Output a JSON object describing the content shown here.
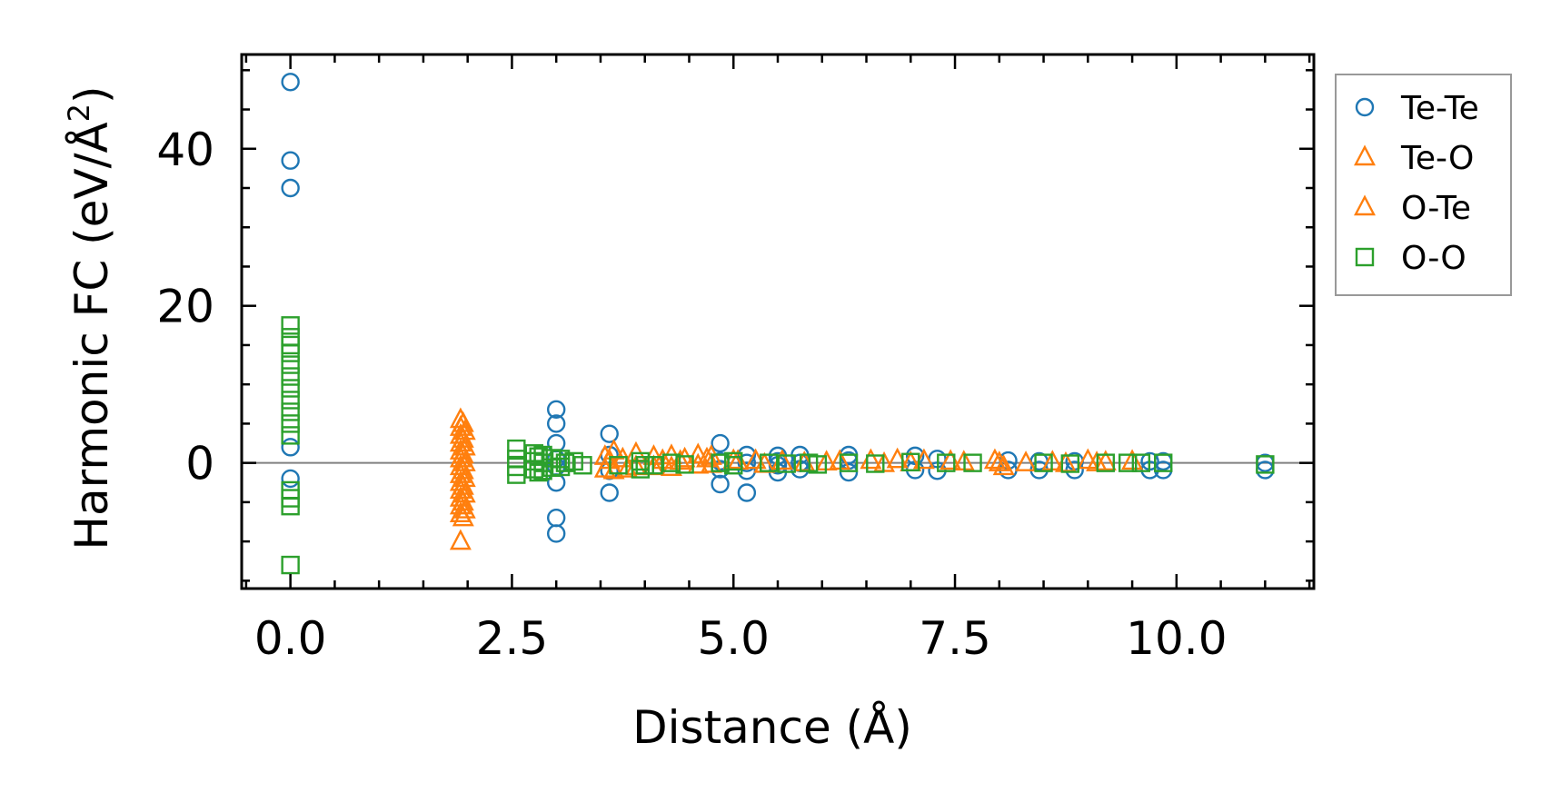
{
  "chart_data": {
    "type": "scatter",
    "title": "",
    "xlabel": "Distance (Å)",
    "ylabel": "Harmonic FC (eV/Å",
    "ylabel_sup": "2",
    "ylabel_close": ")",
    "xlim": [
      -0.55,
      11.55
    ],
    "ylim": [
      -16,
      52
    ],
    "x_ticks": [
      0.0,
      2.5,
      5.0,
      7.5,
      10.0
    ],
    "x_tick_labels": [
      "0.0",
      "2.5",
      "5.0",
      "7.5",
      "10.0"
    ],
    "y_ticks": [
      0,
      20,
      40
    ],
    "y_tick_labels": [
      "0",
      "20",
      "40"
    ],
    "zero_line": true,
    "grid": false,
    "legend_position": "outside-right-top",
    "series": [
      {
        "name": "Te-Te",
        "marker": "circle",
        "color": "#1f77b4",
        "points": [
          [
            0.0,
            48.5
          ],
          [
            0.0,
            38.5
          ],
          [
            0.0,
            35.0
          ],
          [
            0.0,
            2.0
          ],
          [
            0.0,
            -2.0
          ],
          [
            3.0,
            6.8
          ],
          [
            3.0,
            5.0
          ],
          [
            3.0,
            2.5
          ],
          [
            3.0,
            0.5
          ],
          [
            3.0,
            -0.5
          ],
          [
            3.0,
            -2.5
          ],
          [
            3.0,
            -7.0
          ],
          [
            3.0,
            -9.0
          ],
          [
            3.6,
            3.7
          ],
          [
            3.6,
            1.0
          ],
          [
            3.6,
            -1.0
          ],
          [
            3.6,
            -3.8
          ],
          [
            4.85,
            2.5
          ],
          [
            4.85,
            0.2
          ],
          [
            4.85,
            -0.8
          ],
          [
            4.85,
            -2.7
          ],
          [
            5.15,
            1.0
          ],
          [
            5.15,
            0.0
          ],
          [
            5.15,
            -1.0
          ],
          [
            5.15,
            -3.8
          ],
          [
            5.5,
            0.9
          ],
          [
            5.5,
            0.2
          ],
          [
            5.5,
            -0.3
          ],
          [
            5.5,
            -1.2
          ],
          [
            5.75,
            1.0
          ],
          [
            5.75,
            0.0
          ],
          [
            5.75,
            -0.8
          ],
          [
            6.3,
            1.0
          ],
          [
            6.3,
            0.3
          ],
          [
            6.3,
            -1.2
          ],
          [
            7.05,
            0.9
          ],
          [
            7.05,
            -0.9
          ],
          [
            7.3,
            0.5
          ],
          [
            7.3,
            -1.0
          ],
          [
            8.1,
            0.3
          ],
          [
            8.1,
            -0.9
          ],
          [
            8.45,
            0.2
          ],
          [
            8.45,
            -0.9
          ],
          [
            8.85,
            0.2
          ],
          [
            8.85,
            -0.9
          ],
          [
            9.7,
            0.2
          ],
          [
            9.7,
            -0.9
          ],
          [
            9.85,
            0.2
          ],
          [
            9.85,
            -0.9
          ],
          [
            11.0,
            0.0
          ],
          [
            11.0,
            -0.9
          ]
        ]
      },
      {
        "name": "Te-O",
        "marker": "triangle",
        "color": "#ff7f0e",
        "points": [
          [
            1.92,
            5.5
          ],
          [
            1.92,
            4.5
          ],
          [
            1.92,
            3.5
          ],
          [
            1.92,
            2.5
          ],
          [
            1.92,
            1.5
          ],
          [
            1.92,
            0.5
          ],
          [
            1.92,
            -0.5
          ],
          [
            1.92,
            -1.5
          ],
          [
            1.92,
            -2.5
          ],
          [
            1.92,
            -3.5
          ],
          [
            1.92,
            -4.5
          ],
          [
            1.92,
            -5.5
          ],
          [
            1.92,
            -6.5
          ],
          [
            1.92,
            -10.0
          ],
          [
            1.97,
            4.0
          ],
          [
            1.97,
            2.0
          ],
          [
            1.97,
            0.0
          ],
          [
            1.97,
            -2.0
          ],
          [
            1.97,
            -4.0
          ],
          [
            1.97,
            -6.0
          ],
          [
            3.55,
            0.8
          ],
          [
            3.55,
            -0.8
          ],
          [
            3.65,
            1.5
          ],
          [
            3.65,
            -1.0
          ],
          [
            3.75,
            0.5
          ],
          [
            3.9,
            1.2
          ],
          [
            3.9,
            -0.5
          ],
          [
            4.1,
            0.8
          ],
          [
            4.1,
            -0.5
          ],
          [
            4.3,
            0.9
          ],
          [
            4.3,
            -0.6
          ],
          [
            4.45,
            0.5
          ],
          [
            4.6,
            1.0
          ],
          [
            4.6,
            -0.3
          ],
          [
            4.75,
            0.8
          ],
          [
            4.75,
            -0.2
          ],
          [
            5.0,
            0.3
          ],
          [
            5.05,
            0.2
          ],
          [
            5.25,
            0.3
          ],
          [
            5.55,
            0.2
          ],
          [
            6.05,
            0.1
          ],
          [
            6.55,
            0.3
          ],
          [
            6.85,
            0.4
          ],
          [
            7.15,
            0.3
          ],
          [
            7.45,
            0.2
          ],
          [
            7.95,
            0.3
          ],
          [
            8.05,
            -0.5
          ],
          [
            8.3,
            0.0
          ],
          [
            8.6,
            0.1
          ],
          [
            9.0,
            0.3
          ],
          [
            9.2,
            0.1
          ],
          [
            9.5,
            0.2
          ]
        ]
      },
      {
        "name": "O-Te",
        "marker": "triangle",
        "color": "#ff7f0e",
        "points": [
          [
            1.95,
            5.0
          ],
          [
            1.95,
            3.0
          ],
          [
            1.95,
            1.0
          ],
          [
            1.95,
            -1.0
          ],
          [
            1.95,
            -3.0
          ],
          [
            1.95,
            -5.0
          ],
          [
            1.95,
            -7.0
          ],
          [
            3.6,
            0.3
          ],
          [
            3.8,
            -0.8
          ],
          [
            4.2,
            0.3
          ],
          [
            4.4,
            0.2
          ],
          [
            4.7,
            0.5
          ],
          [
            5.35,
            -0.2
          ],
          [
            5.8,
            0.0
          ],
          [
            6.2,
            0.2
          ],
          [
            6.7,
            -0.1
          ],
          [
            7.0,
            0.0
          ],
          [
            7.6,
            0.1
          ],
          [
            8.0,
            0.0
          ],
          [
            8.75,
            -0.1
          ],
          [
            9.1,
            0.0
          ]
        ]
      },
      {
        "name": "O-O",
        "marker": "square",
        "color": "#2ca02c",
        "points": [
          [
            0.0,
            17.5
          ],
          [
            0.0,
            16.0
          ],
          [
            0.0,
            15.0
          ],
          [
            0.0,
            14.0
          ],
          [
            0.0,
            12.5
          ],
          [
            0.0,
            11.0
          ],
          [
            0.0,
            9.5
          ],
          [
            0.0,
            8.0
          ],
          [
            0.0,
            6.5
          ],
          [
            0.0,
            5.0
          ],
          [
            0.0,
            3.5
          ],
          [
            0.0,
            -3.5
          ],
          [
            0.0,
            -4.5
          ],
          [
            0.0,
            -5.5
          ],
          [
            0.0,
            -13.0
          ],
          [
            2.55,
            1.8
          ],
          [
            2.55,
            0.5
          ],
          [
            2.55,
            -0.5
          ],
          [
            2.55,
            -1.5
          ],
          [
            2.75,
            1.2
          ],
          [
            2.75,
            0.2
          ],
          [
            2.75,
            -0.8
          ],
          [
            2.8,
            0.8
          ],
          [
            2.8,
            -1.2
          ],
          [
            2.85,
            1.0
          ],
          [
            2.85,
            0.0
          ],
          [
            2.85,
            -1.0
          ],
          [
            2.95,
            0.6
          ],
          [
            2.95,
            -0.6
          ],
          [
            3.05,
            0.5
          ],
          [
            3.05,
            -0.5
          ],
          [
            3.1,
            0.0
          ],
          [
            3.2,
            0.2
          ],
          [
            3.3,
            -0.3
          ],
          [
            3.7,
            -0.3
          ],
          [
            3.95,
            0.2
          ],
          [
            3.95,
            -0.8
          ],
          [
            4.0,
            -0.3
          ],
          [
            4.1,
            -0.3
          ],
          [
            4.3,
            0.0
          ],
          [
            4.45,
            -0.2
          ],
          [
            4.85,
            0.0
          ],
          [
            5.0,
            0.2
          ],
          [
            5.0,
            -0.3
          ],
          [
            5.4,
            0.0
          ],
          [
            5.6,
            -0.1
          ],
          [
            5.85,
            0.0
          ],
          [
            5.95,
            -0.2
          ],
          [
            6.3,
            0.0
          ],
          [
            6.6,
            -0.1
          ],
          [
            7.0,
            0.1
          ],
          [
            7.4,
            0.0
          ],
          [
            7.7,
            0.0
          ],
          [
            8.5,
            0.0
          ],
          [
            8.8,
            -0.1
          ],
          [
            9.2,
            0.0
          ],
          [
            9.45,
            0.0
          ],
          [
            9.6,
            0.0
          ],
          [
            9.85,
            0.0
          ],
          [
            11.0,
            -0.2
          ]
        ]
      }
    ]
  }
}
